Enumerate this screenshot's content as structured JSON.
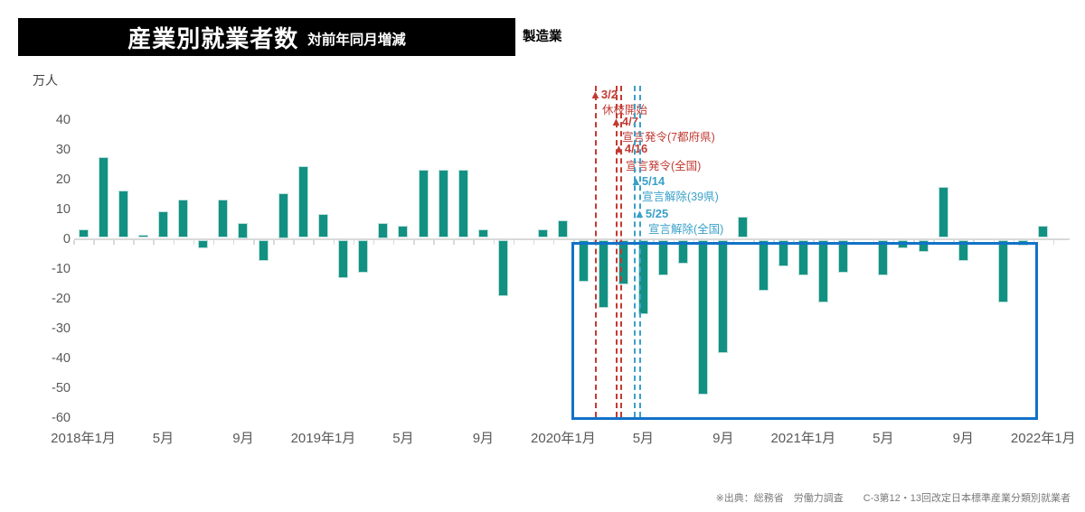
{
  "header": {
    "title": "産業別就業者数",
    "subtitle": "対前年同月増減",
    "category": "製造業"
  },
  "chart_data": {
    "type": "bar",
    "title": "産業別就業者数 対前年同月増減（製造業）",
    "unit_label": "万人",
    "ylabel": "万人",
    "ylim": [
      -60,
      45
    ],
    "y_ticks": [
      40,
      30,
      20,
      10,
      0,
      -10,
      -20,
      -30,
      -40,
      -50,
      -60
    ],
    "grid": false,
    "bar_color": "#129183",
    "x_tick_labels": [
      "2018年1月",
      "5月",
      "9月",
      "2019年1月",
      "5月",
      "9月",
      "2020年1月",
      "5月",
      "9月",
      "2021年1月",
      "5月",
      "9月",
      "2022年1月"
    ],
    "months": [
      "2018-01",
      "2018-02",
      "2018-03",
      "2018-04",
      "2018-05",
      "2018-06",
      "2018-07",
      "2018-08",
      "2018-09",
      "2018-10",
      "2018-11",
      "2018-12",
      "2019-01",
      "2019-02",
      "2019-03",
      "2019-04",
      "2019-05",
      "2019-06",
      "2019-07",
      "2019-08",
      "2019-09",
      "2019-10",
      "2019-11",
      "2019-12",
      "2020-01",
      "2020-02",
      "2020-03",
      "2020-04",
      "2020-05",
      "2020-06",
      "2020-07",
      "2020-08",
      "2020-09",
      "2020-10",
      "2020-11",
      "2020-12",
      "2021-01",
      "2021-02",
      "2021-03",
      "2021-04",
      "2021-05",
      "2021-06",
      "2021-07",
      "2021-08",
      "2021-09",
      "2021-10",
      "2021-11",
      "2021-12",
      "2022-01"
    ],
    "values": [
      3,
      27,
      16,
      1,
      9,
      13,
      -3,
      13,
      5,
      -7,
      15,
      24,
      8,
      -13,
      -11,
      5,
      4,
      23,
      23,
      23,
      3,
      -19,
      0,
      3,
      6,
      -14,
      -23,
      -15,
      -25,
      -12,
      -8,
      -52,
      -38,
      7,
      -17,
      -9,
      -12,
      -21,
      -11,
      0,
      -12,
      -3,
      -4,
      17,
      -7,
      0,
      -21,
      -2,
      4
    ],
    "annotations": [
      {
        "date": "3/2",
        "marker": "▲",
        "label": "休校開始",
        "color": "#c13b33"
      },
      {
        "date": "4/7",
        "marker": "▲",
        "label": "宣言発令(7都府県)",
        "color": "#c13b33"
      },
      {
        "date": "4/16",
        "marker": "▲",
        "label": "宣言発令(全国)",
        "color": "#c13b33"
      },
      {
        "date": "5/14",
        "marker": "▲",
        "label": "宣言解除(39県)",
        "color": "#3aa0c8"
      },
      {
        "date": "5/25",
        "marker": "▲",
        "label": "宣言解除(全国)",
        "color": "#3aa0c8"
      }
    ],
    "highlight_box": {
      "from": "2020-02",
      "to": "2021-12",
      "color": "#1272c8"
    }
  },
  "footer": {
    "source": "※出典：総務省　労働力調査　　C-3第12・13回改定日本標準産業分類別就業者"
  }
}
